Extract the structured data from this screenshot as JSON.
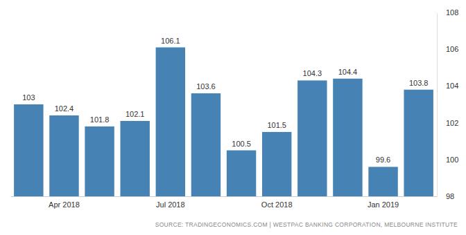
{
  "chart_data": {
    "type": "bar",
    "categories": [
      null,
      "Apr 2018",
      null,
      null,
      "Jul 2018",
      null,
      null,
      "Oct 2018",
      null,
      null,
      "Jan 2019",
      null
    ],
    "values": [
      103,
      102.4,
      101.8,
      102.1,
      106.1,
      103.6,
      100.5,
      101.5,
      104.3,
      104.4,
      99.6,
      103.8
    ],
    "color": "#4682b4",
    "ylim": [
      98,
      108
    ],
    "yticks": [
      98,
      100,
      102,
      104,
      106,
      108
    ],
    "grid": false,
    "data_labels": true,
    "annotations": [
      "SOURCE: TRADINGECONOMICS.COM | WESTPAC BANKING CORPORATION, MELBOURNE INSTITUTE"
    ]
  }
}
